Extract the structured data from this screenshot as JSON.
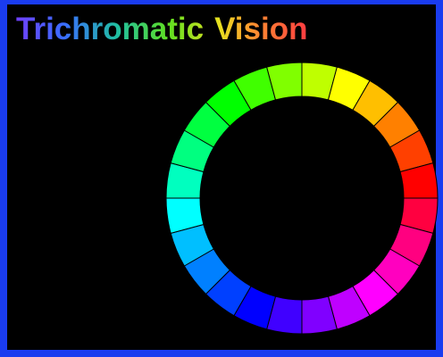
{
  "title": {
    "first": "Trichromatic",
    "second": "Vision"
  }
}
